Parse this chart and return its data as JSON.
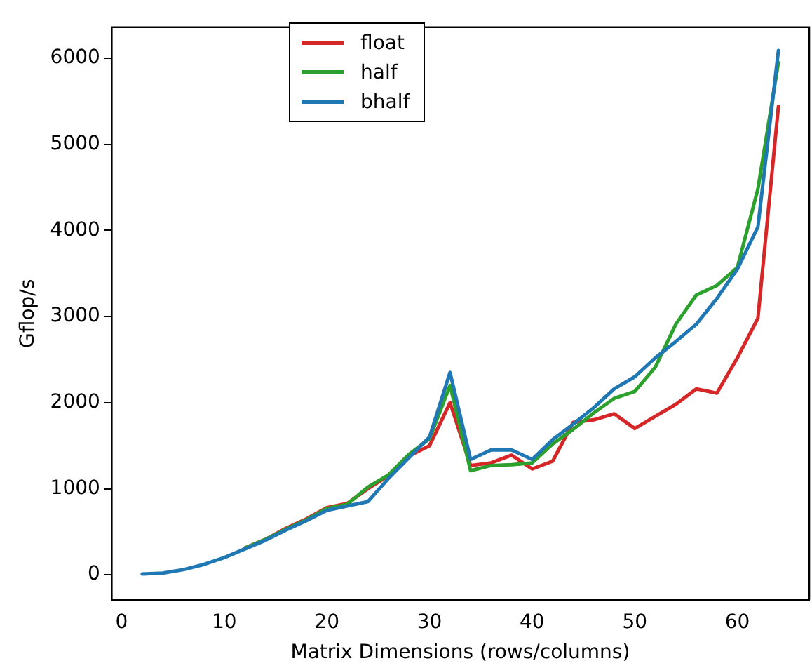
{
  "chart_data": {
    "type": "line",
    "xlabel": "Matrix Dimensions (rows/columns)",
    "ylabel": "Gflop/s",
    "x": [
      2,
      4,
      6,
      8,
      10,
      12,
      14,
      16,
      18,
      20,
      22,
      24,
      26,
      28,
      30,
      32,
      34,
      36,
      38,
      40,
      42,
      44,
      46,
      48,
      50,
      52,
      54,
      56,
      58,
      60,
      62,
      64
    ],
    "series": [
      {
        "name": "float",
        "color": "#d62728",
        "values": [
          null,
          null,
          null,
          null,
          null,
          310,
          410,
          540,
          650,
          780,
          830,
          1000,
          1150,
          1380,
          1500,
          2000,
          1270,
          1300,
          1390,
          1230,
          1320,
          1770,
          1800,
          1870,
          1700,
          1840,
          1980,
          2160,
          2110,
          2520,
          2980,
          5440
        ]
      },
      {
        "name": "half",
        "color": "#2ca02c",
        "values": [
          null,
          null,
          null,
          null,
          null,
          310,
          410,
          530,
          640,
          770,
          820,
          1020,
          1160,
          1400,
          1580,
          2200,
          1210,
          1270,
          1280,
          1300,
          1520,
          1690,
          1880,
          2050,
          2130,
          2410,
          2910,
          3250,
          3360,
          3570,
          4480,
          5950
        ]
      },
      {
        "name": "bhalf",
        "color": "#1f77b4",
        "values": [
          10,
          20,
          60,
          120,
          200,
          300,
          400,
          520,
          630,
          750,
          800,
          850,
          1120,
          1360,
          1600,
          2350,
          1340,
          1450,
          1450,
          1340,
          1570,
          1750,
          1940,
          2160,
          2300,
          2520,
          2710,
          2910,
          3210,
          3550,
          4040,
          6090
        ]
      }
    ],
    "xlim": [
      -1,
      67
    ],
    "xticks": [
      0,
      10,
      20,
      30,
      40,
      50,
      60
    ],
    "ylim": [
      -290,
      6360
    ],
    "yticks": [
      0,
      1000,
      2000,
      3000,
      4000,
      5000,
      6000
    ],
    "grid": false,
    "legend": "top left",
    "line_style": "solid",
    "marker": "none"
  }
}
